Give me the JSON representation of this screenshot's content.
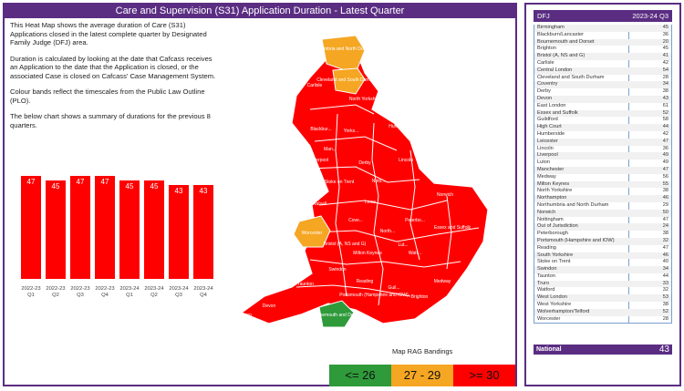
{
  "title": "Care and Supervision (S31) Application Duration - Latest Quarter",
  "description": [
    "This Heat Map shows the average duration of Care (S31) Applications closed in the latest complete quarter by Designated Family Judge (DFJ) area.",
    "Duration is calculated by looking at the date that Cafcass receives an Application to the date that the Application is closed, or the associated Case is closed on Cafcass' Case Management System.",
    "Colour bands reflect the timescales from the Public Law Outline (PLO).",
    "The below chart shows a summary of durations for the previous 8 quarters."
  ],
  "chart_data": {
    "type": "bar",
    "categories": [
      "2022-23 Q1",
      "2022-23 Q2",
      "2022-23 Q3",
      "2022-23 Q4",
      "2023-24 Q1",
      "2023-24 Q2",
      "2023-24 Q3",
      "2023-24 Q4"
    ],
    "values": [
      47,
      45,
      47,
      47,
      45,
      45,
      43,
      43
    ],
    "ylim": [
      0,
      50
    ],
    "color": "#ff0000"
  },
  "map": {
    "legend_title": "Map RAG Bandings",
    "bands": [
      {
        "label": "<= 26",
        "color": "#2e9a3a"
      },
      {
        "label": "27 - 29",
        "color": "#f5a623"
      },
      {
        "label": ">= 30",
        "color": "#ff0000"
      }
    ],
    "labels": [
      {
        "text": "Northumbria and North Durham",
        "color": "#f5a623"
      },
      {
        "text": "Cleveland and South Durham",
        "color": "#f5a623"
      },
      {
        "text": "Carlisle",
        "color": "#ff0000"
      },
      {
        "text": "North Yorkshire",
        "color": "#ff0000"
      },
      {
        "text": "Blackbur...",
        "color": "#ff0000"
      },
      {
        "text": "Yorks...",
        "color": "#ff0000"
      },
      {
        "text": "Humb...",
        "color": "#ff0000"
      },
      {
        "text": "Man...",
        "color": "#ff0000"
      },
      {
        "text": "Liverpool",
        "color": "#ff0000"
      },
      {
        "text": "Derby",
        "color": "#ff0000"
      },
      {
        "text": "Lincoln",
        "color": "#ff0000"
      },
      {
        "text": "Stoke on Trent",
        "color": "#ff0000"
      },
      {
        "text": "Notti...",
        "color": "#ff0000"
      },
      {
        "text": "Norwich",
        "color": "#ff0000"
      },
      {
        "text": "Walsall",
        "color": "#ff0000"
      },
      {
        "text": "Leice...",
        "color": "#ff0000"
      },
      {
        "text": "Worcester",
        "color": "#f5a623"
      },
      {
        "text": "Peterbo...",
        "color": "#ff0000"
      },
      {
        "text": "Essex and Suffolk",
        "color": "#ff0000"
      },
      {
        "text": "Cove...",
        "color": "#ff0000"
      },
      {
        "text": "North...",
        "color": "#ff0000"
      },
      {
        "text": "Bristol (A, NS and G)",
        "color": "#ff0000"
      },
      {
        "text": "Milton Keynes",
        "color": "#ff0000"
      },
      {
        "text": "Lut...",
        "color": "#ff0000"
      },
      {
        "text": "Watf...",
        "color": "#ff0000"
      },
      {
        "text": "Swindon",
        "color": "#ff0000"
      },
      {
        "text": "Taunton",
        "color": "#ff0000"
      },
      {
        "text": "Reading",
        "color": "#ff0000"
      },
      {
        "text": "Portsmouth (Hampshire and IOW)",
        "color": "#ff0000"
      },
      {
        "text": "Guil...",
        "color": "#ff0000"
      },
      {
        "text": "Medway",
        "color": "#ff0000"
      },
      {
        "text": "Brighton",
        "color": "#ff0000"
      },
      {
        "text": "Devon",
        "color": "#ff0000"
      },
      {
        "text": "Bournemouth and Dorset",
        "color": "#2e9a3a"
      },
      {
        "text": "Truro",
        "color": "#ff0000"
      }
    ]
  },
  "table": {
    "col_dfj": "DFJ",
    "col_value": "2023-24 Q3",
    "rows": [
      {
        "name": "Birmingham",
        "value": "45"
      },
      {
        "name": "Blackburn/Lancaster",
        "value": "36"
      },
      {
        "name": "Bournemouth and Dorset",
        "value": "20"
      },
      {
        "name": "Brighton",
        "value": "45"
      },
      {
        "name": "Bristol (A, NS and G)",
        "value": "41"
      },
      {
        "name": "Carlisle",
        "value": "42"
      },
      {
        "name": "Central London",
        "value": "54"
      },
      {
        "name": "Cleveland and South Durham",
        "value": "28"
      },
      {
        "name": "Coventry",
        "value": "34"
      },
      {
        "name": "Derby",
        "value": "38"
      },
      {
        "name": "Devon",
        "value": "43"
      },
      {
        "name": "East London",
        "value": "61"
      },
      {
        "name": "Essex and Suffolk",
        "value": "52"
      },
      {
        "name": "Guildford",
        "value": "58"
      },
      {
        "name": "High Court",
        "value": "44"
      },
      {
        "name": "Humberside",
        "value": "42"
      },
      {
        "name": "Leicester",
        "value": "47"
      },
      {
        "name": "Lincoln",
        "value": "36"
      },
      {
        "name": "Liverpool",
        "value": "49"
      },
      {
        "name": "Luton",
        "value": "49"
      },
      {
        "name": "Manchester",
        "value": "47"
      },
      {
        "name": "Medway",
        "value": "56"
      },
      {
        "name": "Milton Keynes",
        "value": "55"
      },
      {
        "name": "North Yorkshire",
        "value": "38"
      },
      {
        "name": "Northampton",
        "value": "46"
      },
      {
        "name": "Northumbria and North Durham",
        "value": "29"
      },
      {
        "name": "Norwich",
        "value": "50"
      },
      {
        "name": "Nottingham",
        "value": "47"
      },
      {
        "name": "Out of Jurisdiction",
        "value": "24"
      },
      {
        "name": "Peterborough",
        "value": "38"
      },
      {
        "name": "Portsmouth (Hampshire and IOW)",
        "value": "32"
      },
      {
        "name": "Reading",
        "value": "47"
      },
      {
        "name": "South Yorkshire",
        "value": "46"
      },
      {
        "name": "Stoke on Trent",
        "value": "40"
      },
      {
        "name": "Swindon",
        "value": "34"
      },
      {
        "name": "Taunton",
        "value": "44"
      },
      {
        "name": "Truro",
        "value": "33"
      },
      {
        "name": "Watford",
        "value": "32"
      },
      {
        "name": "West London",
        "value": "53"
      },
      {
        "name": "West Yorkshire",
        "value": "38"
      },
      {
        "name": "Wolverhampton/Telford",
        "value": "52"
      },
      {
        "name": "Worcester",
        "value": "28"
      }
    ],
    "footer_label": "National",
    "footer_value": "43"
  },
  "colors": {
    "accent": "#5a2d82",
    "red": "#ff0000",
    "amber": "#f5a623",
    "green": "#2e9a3a"
  }
}
